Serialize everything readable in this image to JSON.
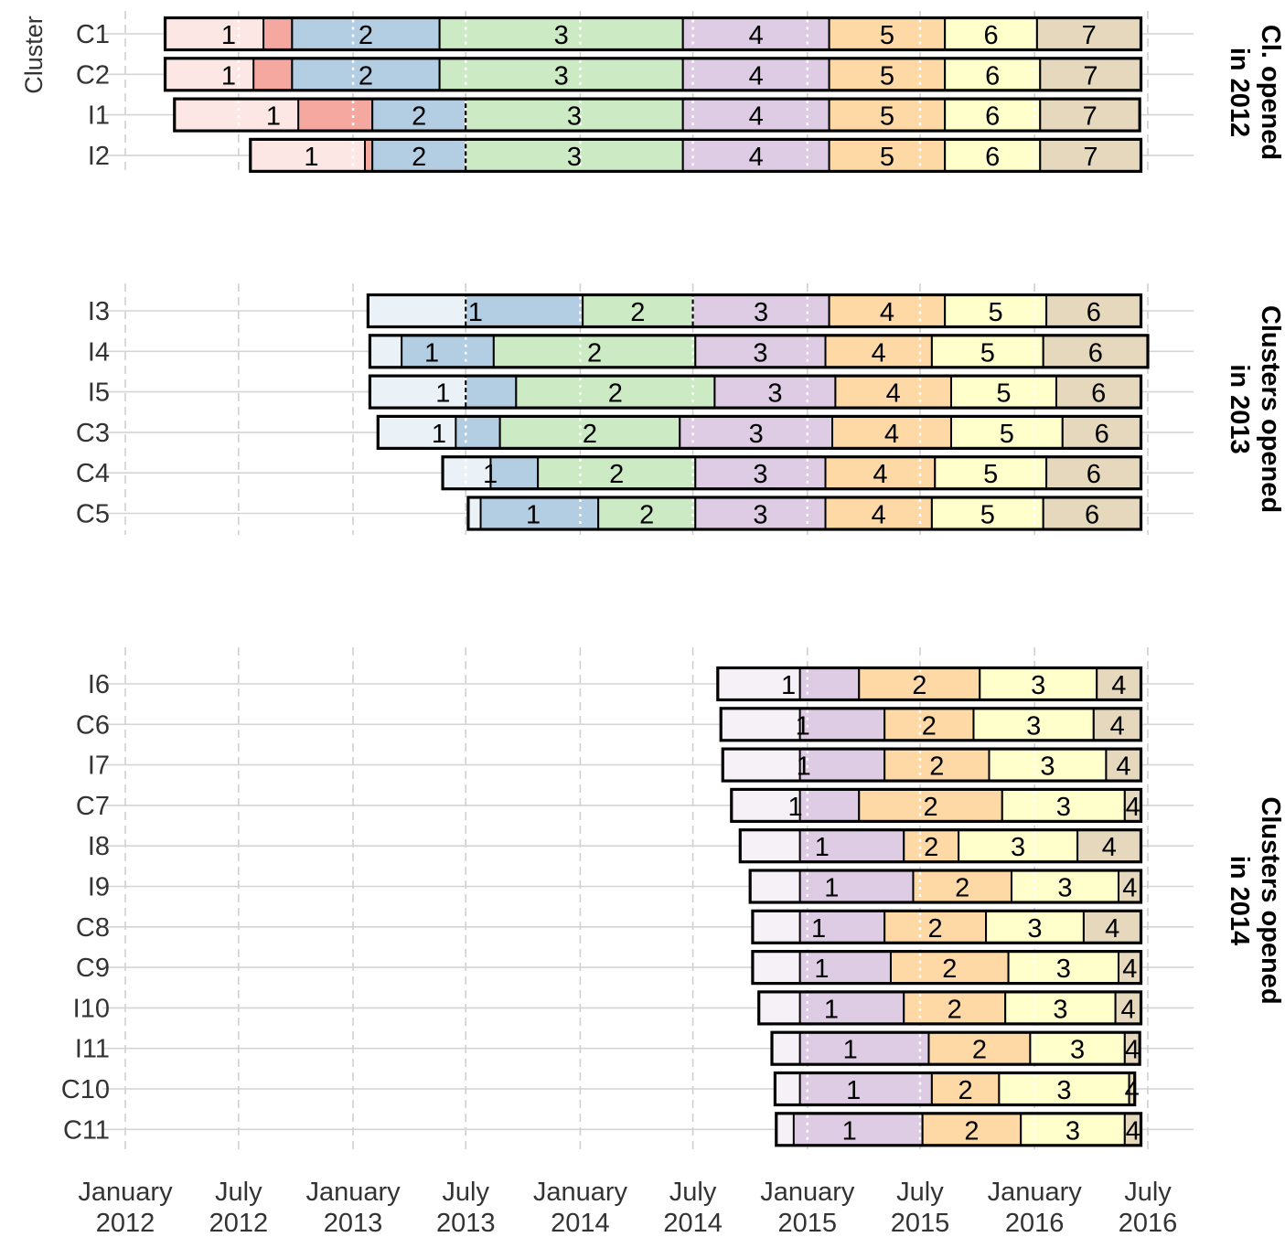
{
  "chart_data": {
    "type": "bar",
    "orientation": "horizontal-timeline",
    "ylabel": "Cluster",
    "xlim": [
      "2012-01-01",
      "2016-07-01"
    ],
    "x_ticks": [
      {
        "date": "2012-01-01",
        "label": [
          "January",
          "2012"
        ]
      },
      {
        "date": "2012-07-01",
        "label": [
          "July",
          "2012"
        ]
      },
      {
        "date": "2013-01-01",
        "label": [
          "January",
          "2013"
        ]
      },
      {
        "date": "2013-07-01",
        "label": [
          "July",
          "2013"
        ]
      },
      {
        "date": "2014-01-01",
        "label": [
          "January",
          "2014"
        ]
      },
      {
        "date": "2014-07-01",
        "label": [
          "July",
          "2014"
        ]
      },
      {
        "date": "2015-01-01",
        "label": [
          "January",
          "2015"
        ]
      },
      {
        "date": "2015-07-01",
        "label": [
          "July",
          "2015"
        ]
      },
      {
        "date": "2016-01-01",
        "label": [
          "January",
          "2016"
        ]
      },
      {
        "date": "2016-07-01",
        "label": [
          "July",
          "2016"
        ]
      }
    ],
    "colors": {
      "steps_2012": [
        "#f4a8a0",
        "#b3cde3",
        "#ccebc5",
        "#decbe4",
        "#fed9a6",
        "#ffffcc",
        "#e5d8bd"
      ],
      "steps_2013": [
        "#b3cde3",
        "#ccebc5",
        "#decbe4",
        "#fed9a6",
        "#ffffcc",
        "#e5d8bd"
      ],
      "steps_2014": [
        "#decbe4",
        "#fed9a6",
        "#ffffcc",
        "#e5d8bd"
      ]
    },
    "facets": [
      {
        "label": [
          "Cl. opened",
          "in 2012"
        ],
        "palette": "steps_2012",
        "rows": [
          {
            "cluster": "C1",
            "start": "2012-03-05",
            "step_starts": [
              "2012-08-10",
              "2012-09-25",
              "2013-05-20",
              "2014-06-15",
              "2015-02-05",
              "2015-08-10",
              "2016-01-05"
            ],
            "end": "2016-06-20",
            "labels": [
              "1",
              "2",
              "3",
              "4",
              "5",
              "6",
              "7"
            ]
          },
          {
            "cluster": "C2",
            "start": "2012-03-05",
            "step_starts": [
              "2012-07-25",
              "2012-09-25",
              "2013-05-20",
              "2014-06-15",
              "2015-02-05",
              "2015-08-10",
              "2016-01-10"
            ],
            "end": "2016-06-20",
            "labels": [
              "1",
              "2",
              "3",
              "4",
              "5",
              "6",
              "7"
            ]
          },
          {
            "cluster": "C3_I1",
            "cluster_label": "I1",
            "start": "2012-03-20",
            "step_starts": [
              "2012-10-05",
              "2013-02-01",
              "2013-07-01",
              "2014-06-15",
              "2015-02-05",
              "2015-08-10",
              "2016-01-10"
            ],
            "end": "2016-06-18",
            "labels": [
              "1",
              "2",
              "3",
              "4",
              "5",
              "6",
              "7"
            ]
          },
          {
            "cluster": "I2",
            "start": "2012-07-20",
            "step_starts": [
              "2013-01-20",
              "2013-02-01",
              "2013-07-01",
              "2014-06-15",
              "2015-02-05",
              "2015-08-10",
              "2016-01-10"
            ],
            "end": "2016-06-20",
            "labels": [
              "1",
              "2",
              "3",
              "4",
              "5",
              "6",
              "7"
            ]
          }
        ]
      },
      {
        "label": [
          "Clusters opened",
          "in 2013"
        ],
        "palette": "steps_2013",
        "rows": [
          {
            "cluster": "I3",
            "start": "2013-01-25",
            "step_starts": [
              "2013-07-01",
              "2014-01-05",
              "2014-07-01",
              "2015-02-05",
              "2015-08-10",
              "2016-01-20"
            ],
            "end": "2016-06-20",
            "labels": [
              "1",
              "2",
              "3",
              "4",
              "5",
              "6"
            ]
          },
          {
            "cluster": "I4",
            "start": "2013-01-28",
            "step_starts": [
              "2013-03-20",
              "2013-08-15",
              "2014-07-05",
              "2015-01-30",
              "2015-07-20",
              "2016-01-15"
            ],
            "end": "2016-07-01",
            "labels": [
              "1",
              "2",
              "3",
              "4",
              "5",
              "6"
            ]
          },
          {
            "cluster": "I5",
            "start": "2013-01-28",
            "step_starts": [
              "2013-07-01",
              "2013-09-20",
              "2014-08-05",
              "2015-02-15",
              "2015-08-20",
              "2016-02-05"
            ],
            "end": "2016-06-20",
            "labels": [
              "1",
              "2",
              "3",
              "4",
              "5",
              "6"
            ]
          },
          {
            "cluster": "C3",
            "start": "2013-02-10",
            "step_starts": [
              "2013-06-15",
              "2013-08-25",
              "2014-06-10",
              "2015-02-10",
              "2015-08-20",
              "2016-02-15"
            ],
            "end": "2016-06-20",
            "labels": [
              "1",
              "2",
              "3",
              "4",
              "5",
              "6"
            ]
          },
          {
            "cluster": "C4",
            "start": "2013-05-25",
            "step_starts": [
              "2013-08-10",
              "2013-10-25",
              "2014-07-05",
              "2015-01-30",
              "2015-07-25",
              "2016-01-20"
            ],
            "end": "2016-06-20",
            "labels": [
              "1",
              "2",
              "3",
              "4",
              "5",
              "6"
            ]
          },
          {
            "cluster": "C5",
            "start": "2013-07-05",
            "step_starts": [
              "2013-07-25",
              "2014-01-30",
              "2014-07-05",
              "2015-01-30",
              "2015-07-20",
              "2016-01-15"
            ],
            "end": "2016-06-20",
            "labels": [
              "1",
              "2",
              "3",
              "4",
              "5",
              "6"
            ]
          }
        ]
      },
      {
        "label": [
          "Clusters opened",
          "in 2014"
        ],
        "palette": "steps_2014",
        "rows": [
          {
            "cluster": "I6",
            "start": "2014-08-10",
            "step_starts": [
              "2014-12-20",
              "2015-03-25",
              "2015-10-05",
              "2016-04-10"
            ],
            "end": "2016-06-20",
            "labels": [
              "1",
              "2",
              "3",
              "4"
            ]
          },
          {
            "cluster": "C6",
            "start": "2014-08-15",
            "step_starts": [
              "2014-12-20",
              "2015-05-05",
              "2015-09-25",
              "2016-04-05"
            ],
            "end": "2016-06-20",
            "labels": [
              "1",
              "2",
              "3",
              "4"
            ]
          },
          {
            "cluster": "I7",
            "start": "2014-08-18",
            "step_starts": [
              "2014-12-20",
              "2015-05-05",
              "2015-10-20",
              "2016-04-25"
            ],
            "end": "2016-06-20",
            "labels": [
              "1",
              "2",
              "3",
              "4"
            ]
          },
          {
            "cluster": "C7",
            "start": "2014-09-01",
            "step_starts": [
              "2014-12-20",
              "2015-03-25",
              "2015-11-10",
              "2016-05-25"
            ],
            "end": "2016-06-20",
            "labels": [
              "1",
              "2",
              "3",
              "4"
            ]
          },
          {
            "cluster": "I8",
            "start": "2014-09-15",
            "step_starts": [
              "2014-12-20",
              "2015-06-05",
              "2015-09-01",
              "2016-03-10"
            ],
            "end": "2016-06-20",
            "labels": [
              "1",
              "2",
              "3",
              "4"
            ]
          },
          {
            "cluster": "I9",
            "start": "2014-10-01",
            "step_starts": [
              "2014-12-20",
              "2015-06-20",
              "2015-11-25",
              "2016-05-15"
            ],
            "end": "2016-06-20",
            "labels": [
              "1",
              "2",
              "3",
              "4"
            ]
          },
          {
            "cluster": "C8",
            "start": "2014-10-05",
            "step_starts": [
              "2014-12-20",
              "2015-05-05",
              "2015-10-15",
              "2016-03-20"
            ],
            "end": "2016-06-20",
            "labels": [
              "1",
              "2",
              "3",
              "4"
            ]
          },
          {
            "cluster": "C9",
            "start": "2014-10-05",
            "step_starts": [
              "2014-12-20",
              "2015-05-15",
              "2015-11-20",
              "2016-05-15"
            ],
            "end": "2016-06-20",
            "labels": [
              "1",
              "2",
              "3",
              "4"
            ]
          },
          {
            "cluster": "I10",
            "start": "2014-10-15",
            "step_starts": [
              "2014-12-20",
              "2015-06-05",
              "2015-11-15",
              "2016-05-10"
            ],
            "end": "2016-06-20",
            "labels": [
              "1",
              "2",
              "3",
              "4"
            ]
          },
          {
            "cluster": "I11",
            "start": "2014-11-05",
            "step_starts": [
              "2014-12-20",
              "2015-07-15",
              "2015-12-25",
              "2016-05-25"
            ],
            "end": "2016-06-18",
            "labels": [
              "1",
              "2",
              "3",
              "4"
            ]
          },
          {
            "cluster": "C10",
            "start": "2014-11-10",
            "step_starts": [
              "2014-12-20",
              "2015-07-20",
              "2015-11-05",
              "2016-06-01"
            ],
            "end": "2016-06-10",
            "labels": [
              "1",
              "2",
              "3",
              "4"
            ]
          },
          {
            "cluster": "C11",
            "start": "2014-11-12",
            "step_starts": [
              "2014-12-10",
              "2015-07-05",
              "2015-12-10",
              "2016-05-25"
            ],
            "end": "2016-06-20",
            "labels": [
              "1",
              "2",
              "3",
              "4"
            ]
          }
        ]
      }
    ]
  }
}
